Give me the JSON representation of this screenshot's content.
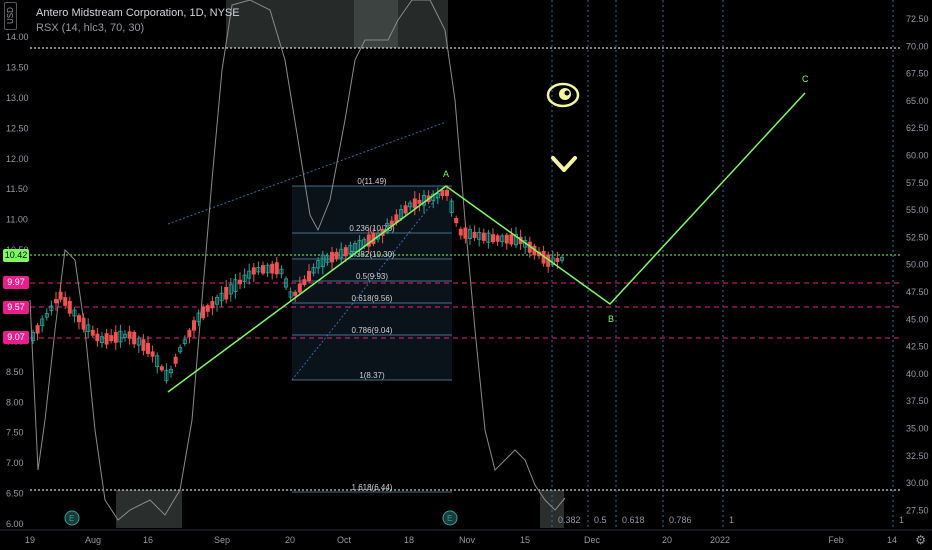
{
  "header": {
    "title": "Antero Midstream Corporation, 1D, NYSE",
    "indicator": "RSX (14, hlc3, 70, 30)"
  },
  "currency_tag": "USD",
  "left_axis": {
    "ticks": [
      "14.00",
      "13.50",
      "13.00",
      "12.50",
      "12.00",
      "11.50",
      "11.00",
      "10.50",
      "10.00",
      "9.50",
      "9.00",
      "8.50",
      "8.00",
      "7.50",
      "7.00",
      "6.50",
      "6.00"
    ],
    "badges": [
      {
        "text": "10.42",
        "color": "#7cfc5f",
        "text_color": "#000",
        "value": 10.42
      },
      {
        "text": "9.97",
        "color": "#e91e8c",
        "text_color": "#fff",
        "value": 9.97
      },
      {
        "text": "9.57",
        "color": "#e91e8c",
        "text_color": "#fff",
        "value": 9.57
      },
      {
        "text": "9.07",
        "color": "#e91e8c",
        "text_color": "#fff",
        "value": 9.07
      }
    ]
  },
  "right_axis": {
    "ticks": [
      "72.50",
      "70.00",
      "67.50",
      "65.00",
      "62.50",
      "60.00",
      "57.50",
      "55.00",
      "52.50",
      "50.00",
      "47.50",
      "45.00",
      "42.50",
      "40.00",
      "37.50",
      "35.00",
      "32.50",
      "30.00",
      "27.50"
    ]
  },
  "x_axis": {
    "ticks": [
      "19",
      "Aug",
      "16",
      "Sep",
      "20",
      "Oct",
      "18",
      "Nov",
      "15",
      "Dec",
      "20",
      "2022",
      "Feb",
      "14"
    ]
  },
  "fib_levels": [
    {
      "label": "0(11.49)"
    },
    {
      "label": "0.236(10.73)"
    },
    {
      "label": "0.382(10.30)"
    },
    {
      "label": "0.5(9.93)"
    },
    {
      "label": "0.618(9.56)"
    },
    {
      "label": "0.786(9.04)"
    },
    {
      "label": "1(8.37)"
    },
    {
      "label": "1.618(6.44)"
    }
  ],
  "time_fibs": [
    "0.382",
    "0.5",
    "0.618",
    "0.786",
    "1",
    "1"
  ],
  "wave_labels": {
    "a": "A",
    "b": "B",
    "c": "C"
  },
  "colors": {
    "up": "#26a69a",
    "down": "#ef5350",
    "wave": "#7cfc5f",
    "rsx": "#8a8a8a",
    "pink": "#e91e8c",
    "fib": "#5a8fb0",
    "accent": "#f5f5a0"
  },
  "icons": {
    "eye": "eye-icon",
    "chevron": "chevron-down-icon",
    "settings": "gear-icon"
  }
}
